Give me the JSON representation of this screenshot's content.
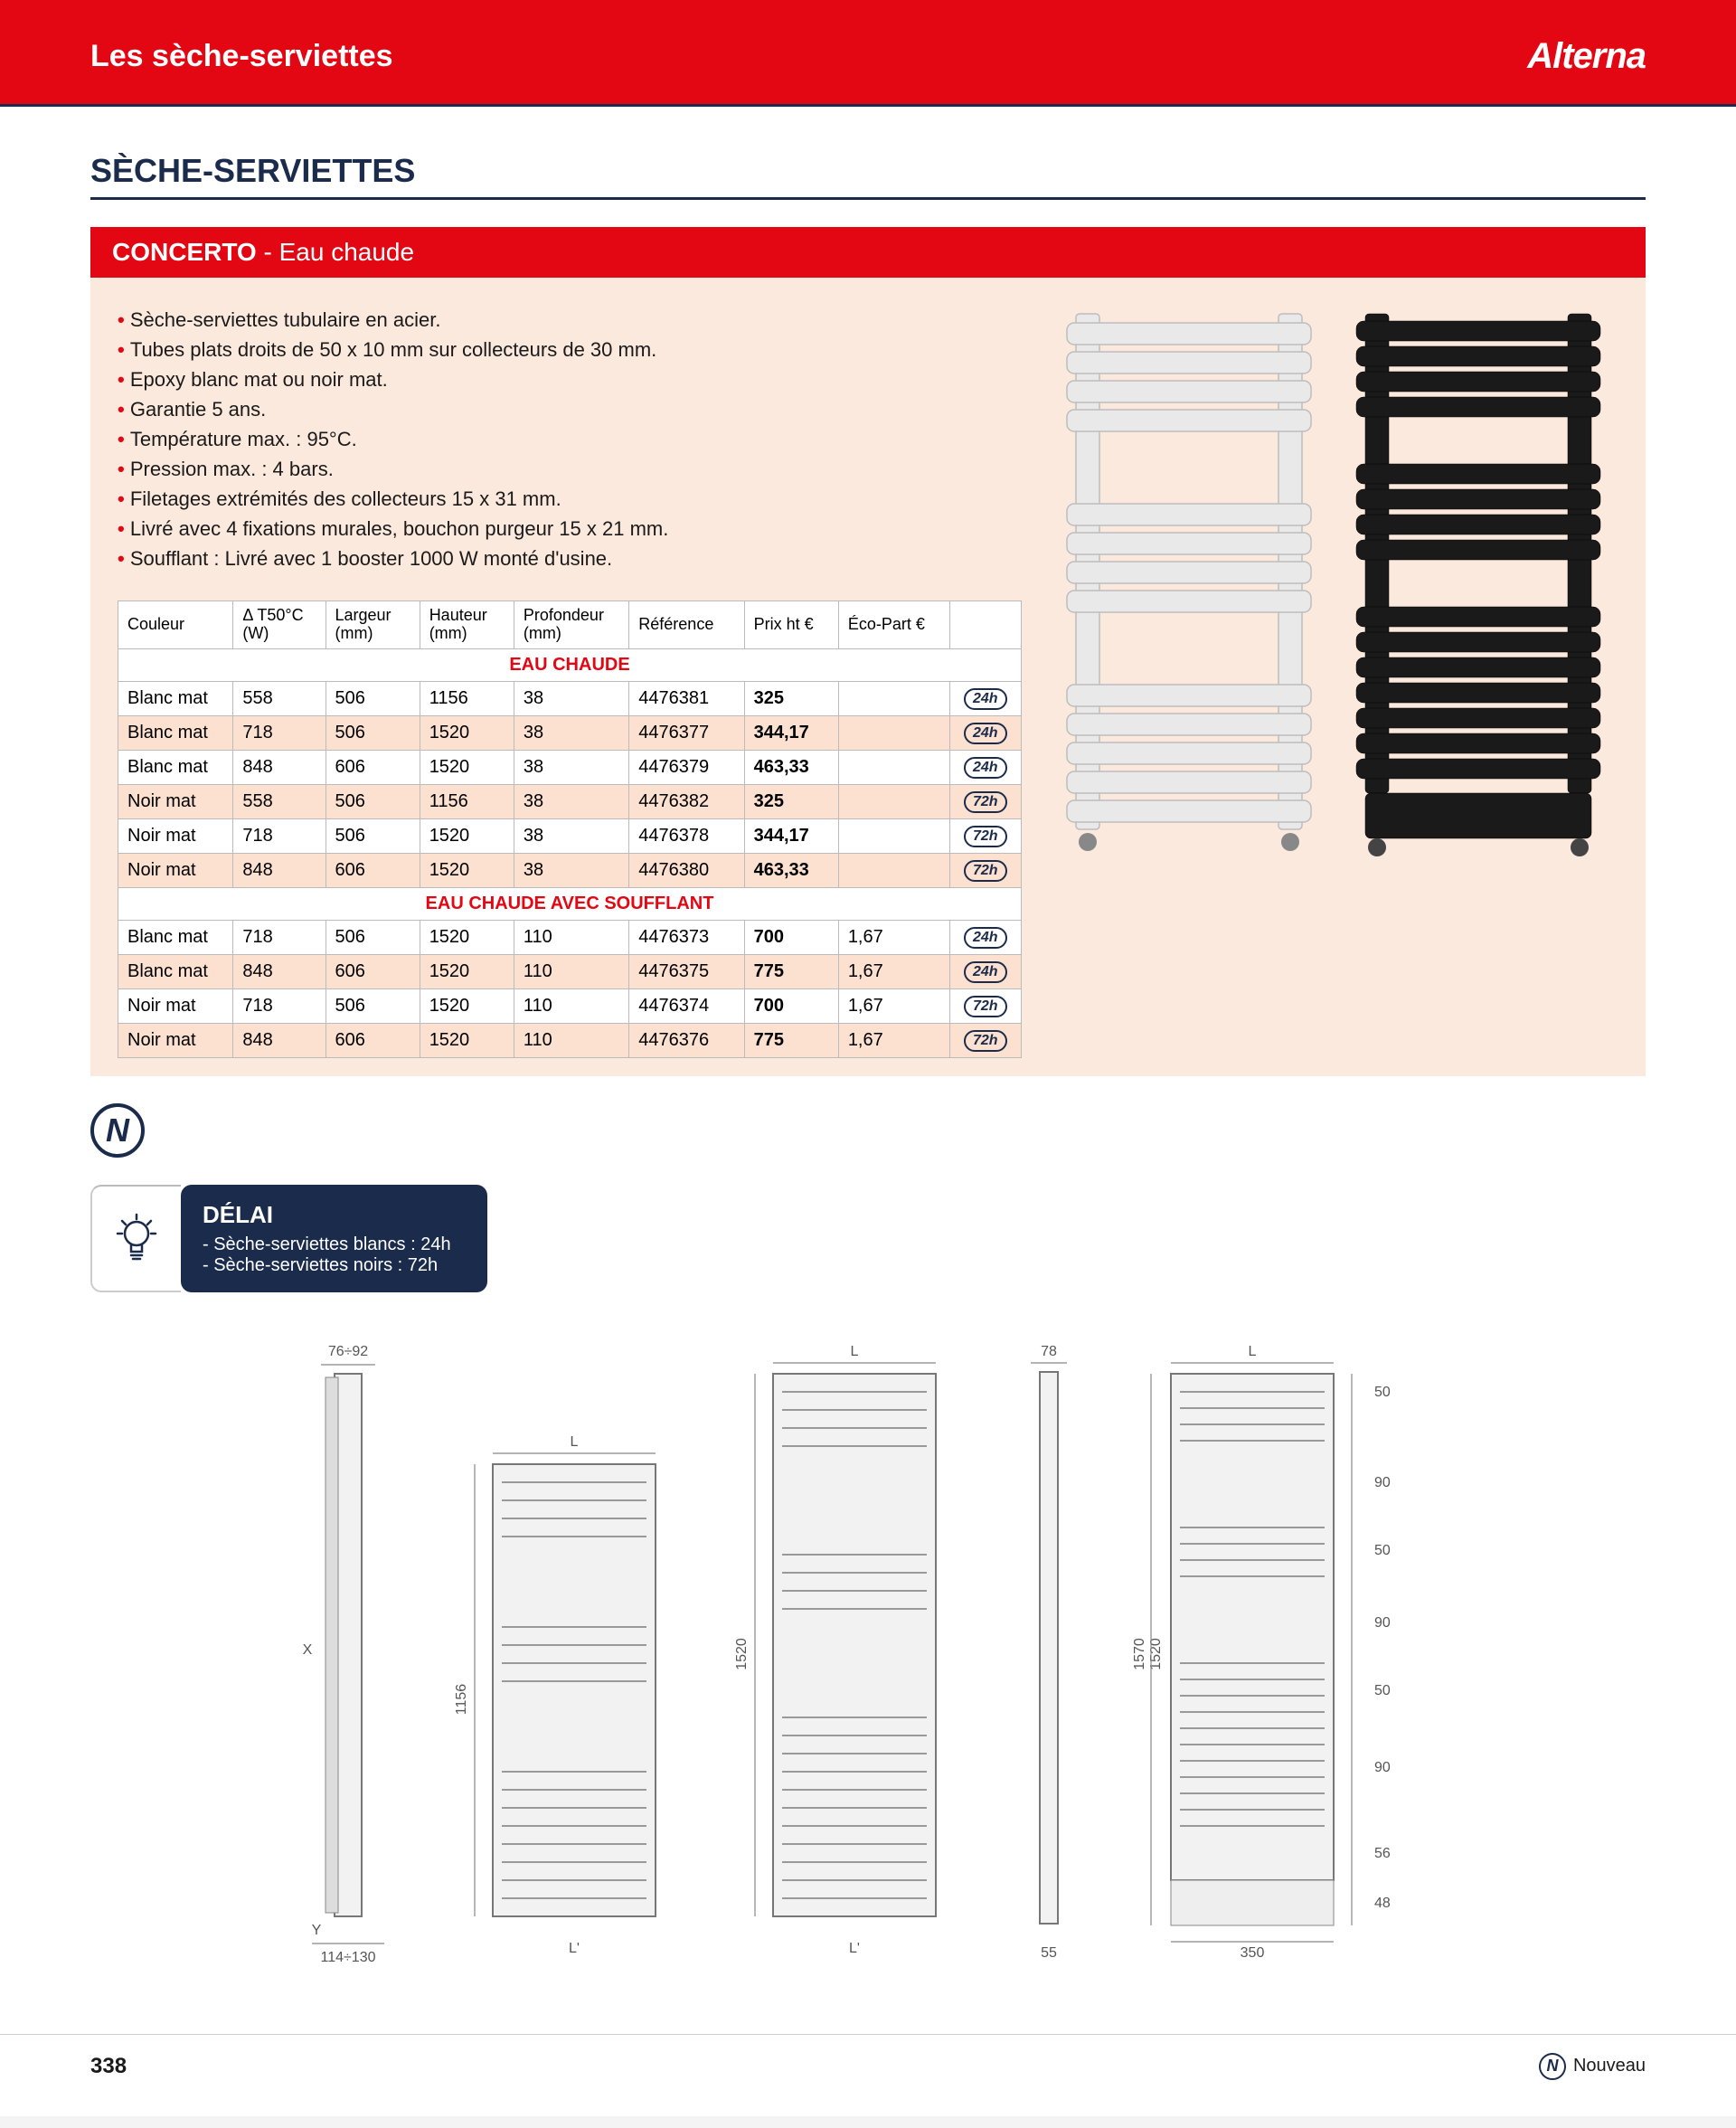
{
  "page_number": "338",
  "header": {
    "title": "Les sèche-serviettes",
    "brand": "Alterna"
  },
  "section_title": "SÈCHE-SERVIETTES",
  "product": {
    "name": "CONCERTO",
    "subtitle": "Eau chaude",
    "bullets": [
      "Sèche-serviettes tubulaire en acier.",
      "Tubes plats droits de 50 x 10 mm sur collecteurs de 30 mm.",
      "Epoxy blanc mat ou noir mat.",
      "Garantie 5 ans.",
      "Température max. : 95°C.",
      "Pression max. : 4 bars.",
      "Filetages extrémités des collecteurs 15 x 31 mm.",
      "Livré avec 4 fixations murales, bouchon purgeur 15 x 21 mm.",
      "Soufflant : Livré avec 1 booster 1000 W monté d'usine."
    ]
  },
  "table": {
    "columns": [
      "Couleur",
      "Δ T50°C (W)",
      "Largeur (mm)",
      "Hauteur (mm)",
      "Profondeur (mm)",
      "Référence",
      "Prix ht €",
      "Éco-Part €",
      ""
    ],
    "col_widths": [
      "110px",
      "80px",
      "90px",
      "90px",
      "110px",
      "110px",
      "90px",
      "100px",
      "60px"
    ],
    "groups": [
      {
        "heading": "EAU CHAUDE",
        "rows": [
          {
            "alt": false,
            "cells": [
              "Blanc mat",
              "558",
              "506",
              "1156",
              "38",
              "4476381",
              "325",
              "",
              "24h"
            ]
          },
          {
            "alt": true,
            "cells": [
              "Blanc mat",
              "718",
              "506",
              "1520",
              "38",
              "4476377",
              "344,17",
              "",
              "24h"
            ]
          },
          {
            "alt": false,
            "cells": [
              "Blanc mat",
              "848",
              "606",
              "1520",
              "38",
              "4476379",
              "463,33",
              "",
              "24h"
            ]
          },
          {
            "alt": true,
            "cells": [
              "Noir mat",
              "558",
              "506",
              "1156",
              "38",
              "4476382",
              "325",
              "",
              "72h"
            ]
          },
          {
            "alt": false,
            "cells": [
              "Noir mat",
              "718",
              "506",
              "1520",
              "38",
              "4476378",
              "344,17",
              "",
              "72h"
            ]
          },
          {
            "alt": true,
            "cells": [
              "Noir mat",
              "848",
              "606",
              "1520",
              "38",
              "4476380",
              "463,33",
              "",
              "72h"
            ]
          }
        ]
      },
      {
        "heading": "EAU CHAUDE AVEC SOUFFLANT",
        "rows": [
          {
            "alt": false,
            "cells": [
              "Blanc mat",
              "718",
              "506",
              "1520",
              "110",
              "4476373",
              "700",
              "1,67",
              "24h"
            ]
          },
          {
            "alt": true,
            "cells": [
              "Blanc mat",
              "848",
              "606",
              "1520",
              "110",
              "4476375",
              "775",
              "1,67",
              "24h"
            ]
          },
          {
            "alt": false,
            "cells": [
              "Noir mat",
              "718",
              "506",
              "1520",
              "110",
              "4476374",
              "700",
              "1,67",
              "72h"
            ]
          },
          {
            "alt": true,
            "cells": [
              "Noir mat",
              "848",
              "606",
              "1520",
              "110",
              "4476376",
              "775",
              "1,67",
              "72h"
            ]
          }
        ]
      }
    ]
  },
  "delai": {
    "title": "DÉLAI",
    "lines": [
      "- Sèche-serviettes blancs : 24h",
      "- Sèche-serviettes noirs : 72h"
    ]
  },
  "diagram_labels": {
    "side_top": "76÷92",
    "side_bottom": "114÷130",
    "sideX": "X",
    "sideY": "Y",
    "front_L": "L",
    "front_h1": "1156",
    "front_h2": "1520",
    "front_Lp": "L'",
    "side2_top": "78",
    "side2_bottom": "55",
    "right_L": "L",
    "right_h1": "1570",
    "right_h2": "1520",
    "right_bottom": "350",
    "right_seg_50": "50",
    "right_seg_90": "90",
    "right_seg_56": "56",
    "right_seg_48": "48"
  },
  "footer_new": "Nouveau",
  "colors": {
    "red": "#e30613",
    "navy": "#1a2b4c",
    "peach": "#fce9de",
    "peach_dark": "#fce0d0",
    "white_rad": "#e9e9e9",
    "black_rad": "#1a1a1a"
  }
}
